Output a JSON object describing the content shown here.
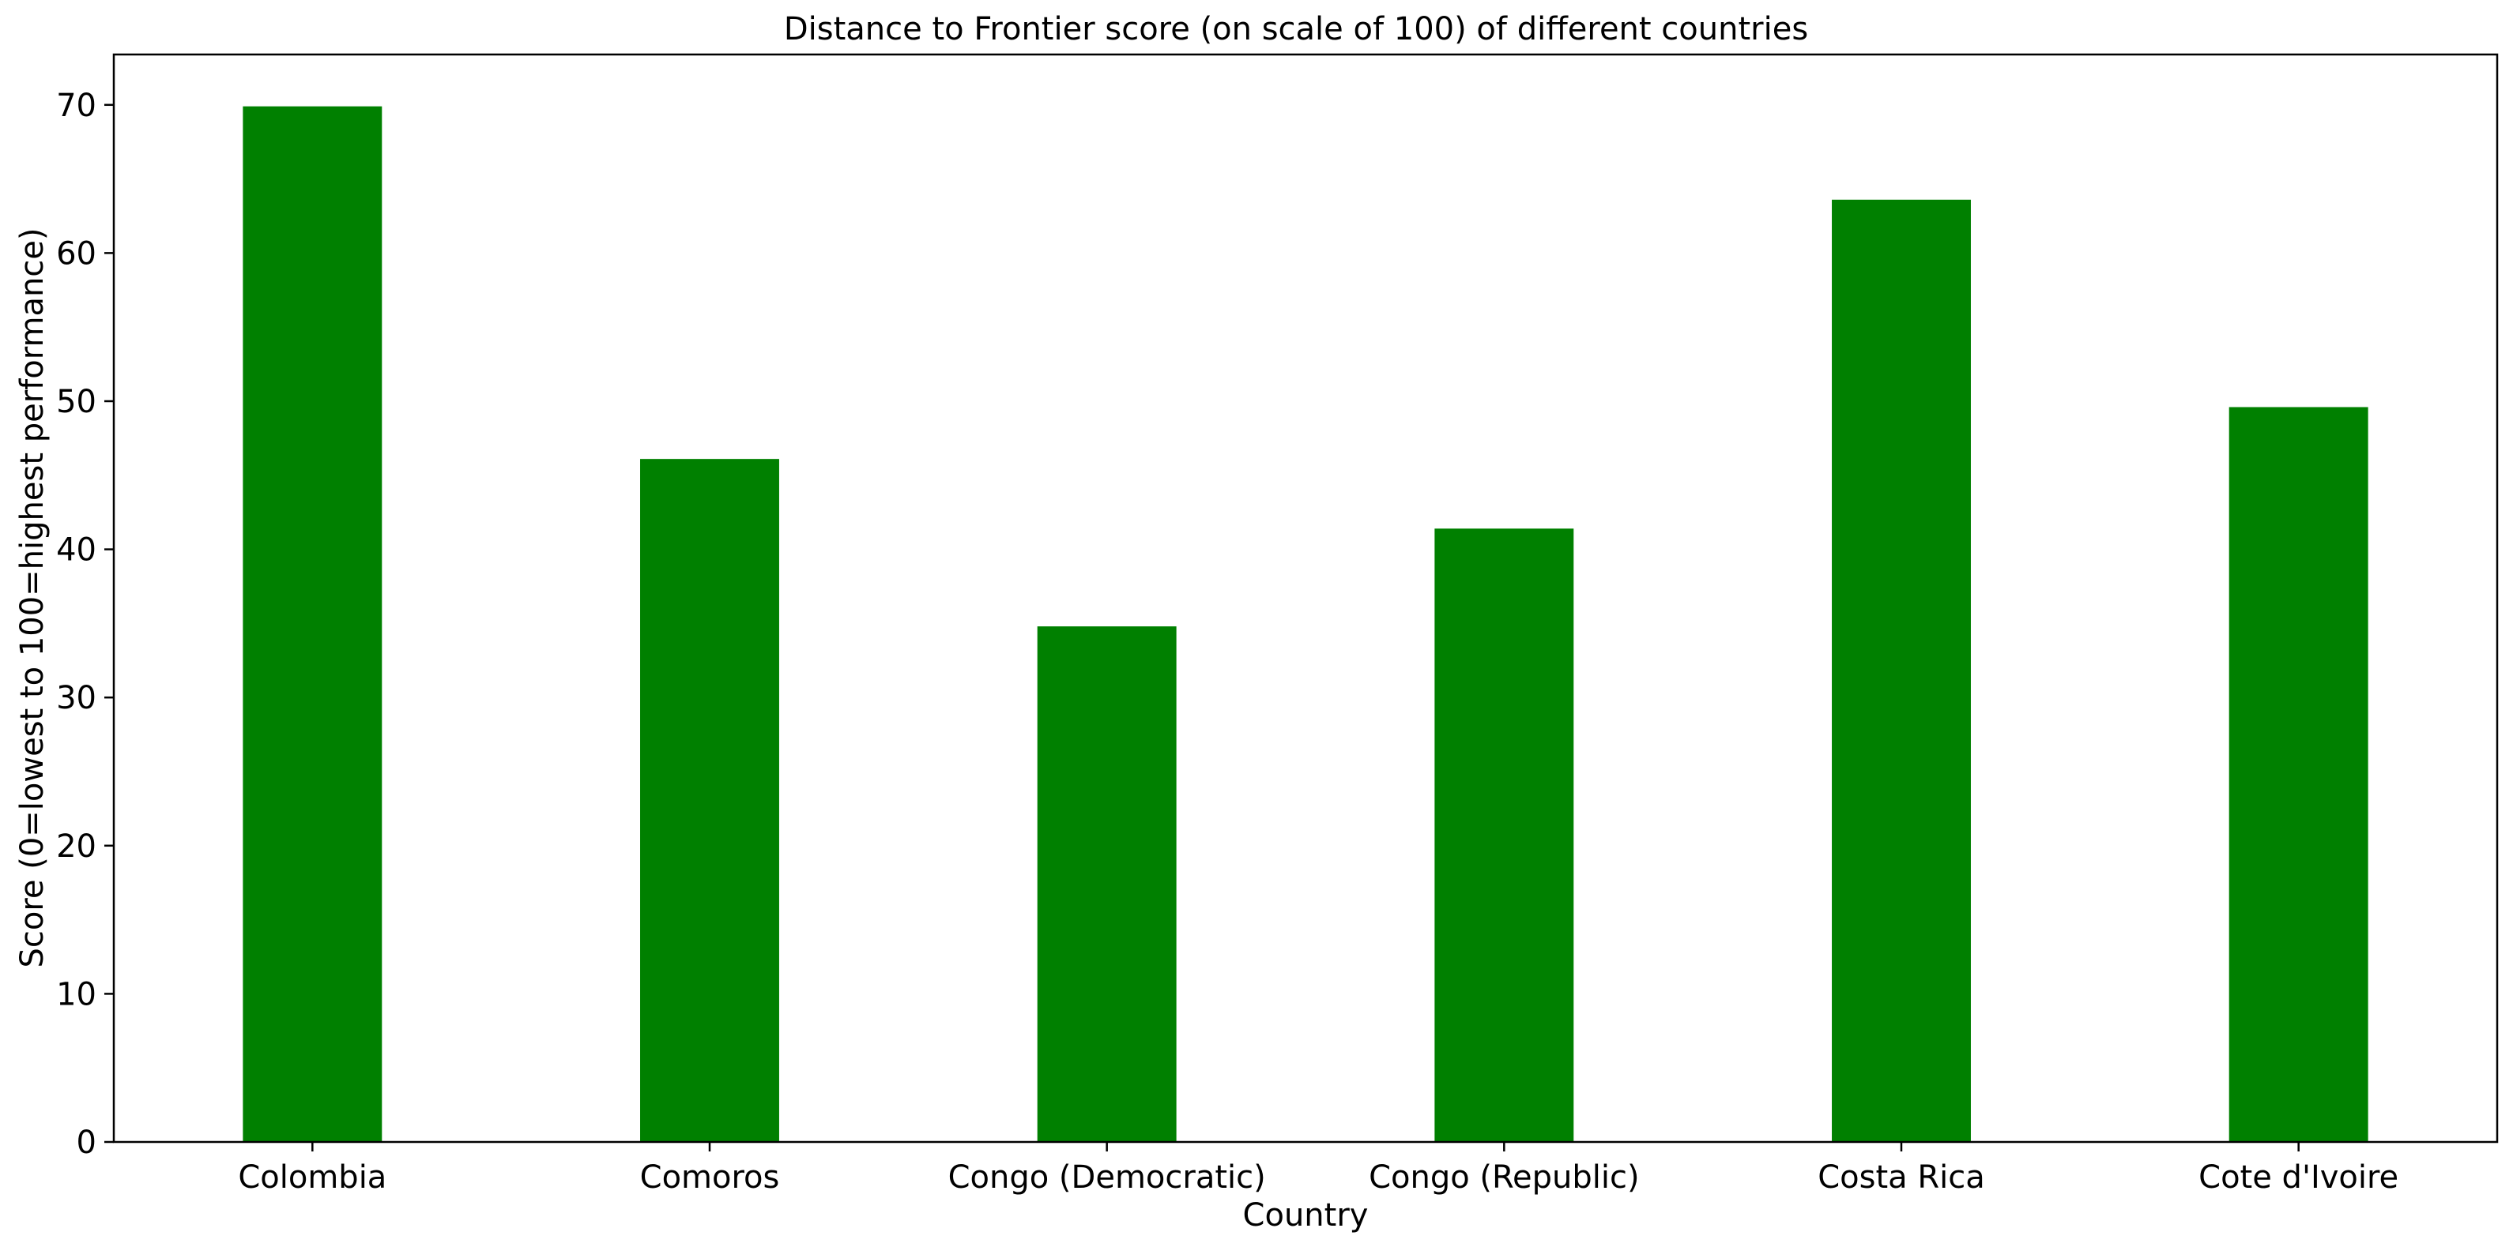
{
  "chart_data": {
    "type": "bar",
    "title": "Distance to Frontier score (on scale of 100) of different countries",
    "xlabel": "Country",
    "ylabel": "Score (0=lowest to 100=highest performance)",
    "categories": [
      "Colombia",
      "Comoros",
      "Congo (Democratic)",
      "Congo (Republic)",
      "Costa Rica",
      "Cote d'Ivoire"
    ],
    "values": [
      69.9,
      46.1,
      34.8,
      41.4,
      63.6,
      49.6
    ],
    "ylim": [
      0,
      73.4
    ],
    "yticks": [
      0,
      10,
      20,
      30,
      40,
      50,
      60,
      70
    ],
    "bar_color": "#008000",
    "grid": false,
    "legend": "none"
  }
}
